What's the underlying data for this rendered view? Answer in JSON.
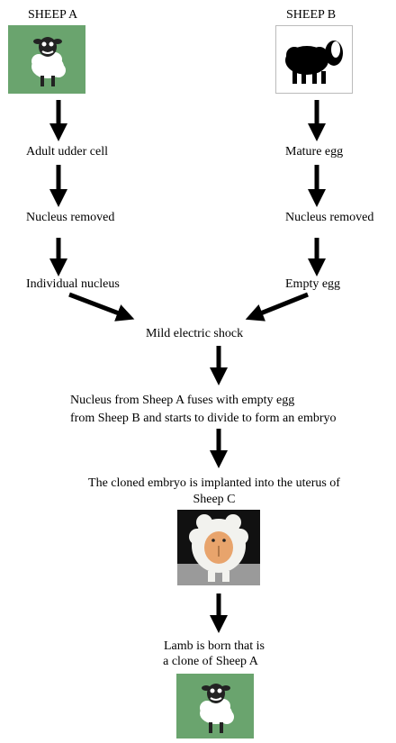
{
  "sheep_a": {
    "label": "SHEEP A",
    "steps": [
      "Adult udder cell",
      "Nucleus removed",
      "Individual nucleus"
    ]
  },
  "sheep_b": {
    "label": "SHEEP B",
    "steps": [
      "Mature egg",
      "Nucleus removed",
      "Empty egg"
    ]
  },
  "merge": {
    "shock": "Mild electric shock",
    "fuse_line1": "Nucleus from Sheep A fuses with empty egg",
    "fuse_line2": "from Sheep B and starts to divide to form an embryo",
    "implant_line1": "The cloned embryo is implanted into the uterus of",
    "implant_line2": "Sheep C",
    "born_line1": "Lamb is born that is",
    "born_line2": "a clone of Sheep A"
  },
  "images": {
    "sheep_a": "cartoon-sheep-on-green",
    "sheep_b": "black-sheep-silhouette",
    "sheep_c": "toy-sheep-figurine",
    "lamb": "cartoon-sheep-on-green"
  },
  "colors": {
    "green_bg": "#6aa46e",
    "arrow": "#000000"
  }
}
